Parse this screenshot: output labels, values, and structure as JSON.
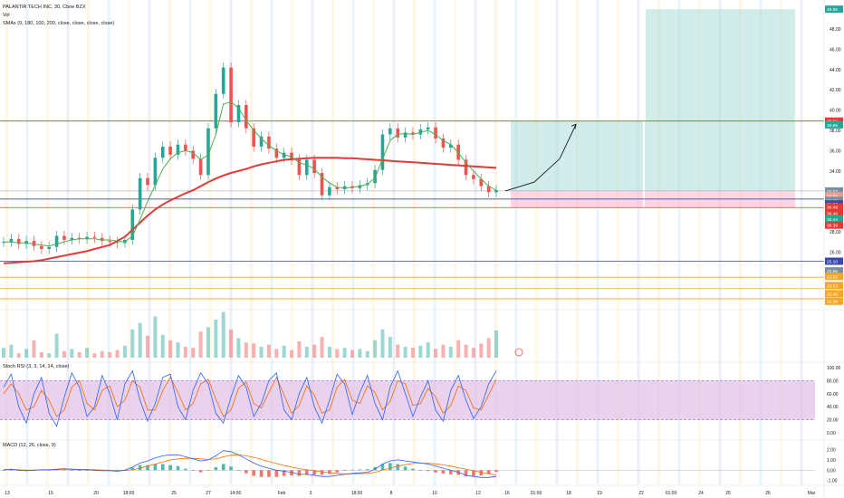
{
  "legend": {
    "title": "PALANTIR TECH INC, 30, Cboe BZX",
    "vol": "Vol",
    "smas": "SMAs (9, 180, 100, 200, close, close, close, close)",
    "stoch": "Stoch RSI (3, 3, 14, 14, close)",
    "macd": "MACD (12, 26, close, 9)"
  },
  "colors": {
    "background": "#ffffff",
    "candle_up": "#26a69a",
    "candle_down": "#ef5350",
    "sma_green": "#4caf50",
    "sma_red": "#e53935",
    "hline_red": "#e53935",
    "hline_blue": "#3949ab",
    "hline_orange": "#f5a623",
    "target_zone": "#b2dfdb",
    "stop_zone": "#f8bbd0",
    "stoch_band": "#e1bee7",
    "k_line": "#2962ff",
    "d_line": "#ef6c00",
    "macd_line": "#2962ff",
    "signal_line": "#ff6d00"
  },
  "x_axis_labels": [
    "13",
    "15",
    "20",
    "18:00",
    "25",
    "27",
    "14:00",
    "Feb",
    "3",
    "18:00",
    "8",
    "10",
    "12",
    "16",
    "01:00",
    "18",
    "19",
    "22",
    "01:00",
    "24",
    "25",
    "26",
    "Mar"
  ],
  "price_axis": {
    "ticks": [
      "48.00",
      "46.00",
      "44.00",
      "42.00",
      "40.00",
      "38.00",
      "36.00",
      "34.00",
      "28.00",
      "26.00"
    ],
    "badges": [
      {
        "label": "49.95",
        "value": 49.95,
        "color": "#26a69a"
      },
      {
        "label": "38.92",
        "value": 38.92,
        "color": "#e53935"
      },
      {
        "label": "38.95",
        "value": 38.55,
        "color": "#26a69a"
      },
      {
        "label": "32.03",
        "value": 32.03,
        "color": "#78909c"
      },
      {
        "label": "32.00",
        "value": 31.55,
        "color": "#ef9a9a"
      },
      {
        "label": "32.06",
        "value": 31.1,
        "color": "#78909c"
      },
      {
        "label": "31.23",
        "value": 30.75,
        "color": "#3949ab"
      },
      {
        "label": "30.49",
        "value": 30.45,
        "color": "#e53935"
      },
      {
        "label": "30.46",
        "value": 29.85,
        "color": "#e53935"
      },
      {
        "label": "30.44",
        "value": 29.25,
        "color": "#26a69a"
      },
      {
        "label": "30.39",
        "value": 28.65,
        "color": "#e53935"
      },
      {
        "label": "25.10",
        "value": 25.1,
        "color": "#3949ab"
      },
      {
        "label": "23.96",
        "value": 24.15,
        "color": "#78909c"
      },
      {
        "label": "23.52",
        "value": 23.6,
        "color": "#f5a623"
      },
      {
        "label": "23.53",
        "value": 22.7,
        "color": "#f5a623"
      },
      {
        "label": "23.45",
        "value": 21.9,
        "color": "#f5a623"
      },
      {
        "label": "21.36",
        "value": 21.15,
        "color": "#f5a623"
      }
    ]
  },
  "stoch_axis": {
    "ticks": [
      "100.00",
      "80.00",
      "60.00",
      "40.00",
      "20.00",
      "0.00"
    ]
  },
  "macd_axis": {
    "ticks": [
      "2.00",
      "1.00",
      "0.00",
      "-1.00"
    ]
  },
  "chart_data": {
    "type": "candlestick",
    "title": "PALANTIR TECH INC, 30, Cboe BZX",
    "price_range": [
      20.5,
      50.5
    ],
    "key_levels": [
      {
        "value": 38.92,
        "color": "#e53935"
      },
      {
        "value": 31.23,
        "color": "#3949ab"
      },
      {
        "value": 30.39,
        "color": "#e53935"
      },
      {
        "value": 25.1,
        "color": "#3949ab"
      },
      {
        "value": 23.52,
        "color": "#f5a623"
      },
      {
        "value": 22.4,
        "color": "#f5a623"
      },
      {
        "value": 21.4,
        "color": "#f5a623"
      }
    ],
    "position": {
      "entry": 32.03,
      "target": 38.92,
      "stop": 30.39,
      "extended_target": 49.95
    },
    "price_path": [
      27.0,
      27.3,
      26.8,
      27.1,
      26.6,
      26.3,
      26.5,
      27.6,
      27.2,
      27.4,
      27.3,
      27.5,
      27.4,
      27.1,
      27.0,
      26.9,
      27.2,
      30.2,
      33.3,
      32.6,
      35.3,
      36.4,
      35.6,
      36.6,
      36.0,
      35.2,
      33.6,
      38.2,
      41.6,
      44.2,
      38.8,
      40.5,
      38.2,
      36.4,
      37.4,
      36.2,
      35.3,
      35.8,
      35.1,
      33.6,
      35.1,
      33.8,
      31.6,
      32.4,
      32.2,
      32.5,
      32.3,
      32.6,
      32.8,
      34.1,
      37.6,
      38.2,
      37.3,
      37.8,
      37.6,
      38.1,
      38.3,
      37.2,
      36.3,
      36.6,
      35.1,
      33.6,
      33.2,
      32.5,
      31.9,
      32.1
    ],
    "sma_green": [
      27.0,
      27.0,
      26.9,
      26.9,
      26.8,
      26.7,
      26.6,
      26.8,
      27.0,
      27.2,
      27.3,
      27.3,
      27.3,
      27.2,
      27.2,
      27.1,
      27.0,
      27.6,
      29.2,
      31.0,
      32.6,
      34.2,
      35.2,
      35.8,
      36.0,
      35.8,
      35.1,
      35.6,
      37.6,
      40.6,
      40.8,
      40.2,
      39.0,
      38.0,
      37.2,
      36.5,
      36.0,
      35.6,
      35.4,
      34.8,
      34.6,
      34.2,
      33.4,
      32.8,
      32.4,
      32.3,
      32.4,
      32.5,
      32.7,
      33.3,
      35.2,
      37.0,
      37.6,
      37.7,
      37.6,
      37.8,
      38.0,
      37.6,
      37.0,
      36.6,
      35.8,
      34.8,
      34.0,
      33.2,
      32.5,
      32.1
    ],
    "sma_red": [
      24.9,
      24.95,
      25.0,
      25.05,
      25.1,
      25.2,
      25.35,
      25.5,
      25.65,
      25.8,
      25.95,
      26.1,
      26.3,
      26.5,
      26.7,
      27.1,
      27.5,
      28.2,
      28.9,
      29.6,
      30.2,
      30.7,
      31.1,
      31.45,
      31.8,
      32.1,
      32.5,
      32.9,
      33.25,
      33.55,
      33.8,
      34.0,
      34.2,
      34.45,
      34.65,
      34.8,
      34.95,
      35.1,
      35.15,
      35.2,
      35.25,
      35.3,
      35.3,
      35.3,
      35.3,
      35.25,
      35.25,
      35.2,
      35.15,
      35.1,
      35.05,
      35.0,
      34.95,
      34.9,
      34.85,
      34.8,
      34.75,
      34.7,
      34.65,
      34.6,
      34.55,
      34.5,
      34.45,
      34.4,
      34.35,
      34.3
    ],
    "projection_path": [
      [
        32.03
      ],
      [
        32.9
      ],
      [
        35.2
      ],
      [
        38.6
      ]
    ],
    "volume": [
      0.9,
      1.2,
      0.4,
      0.8,
      1.6,
      0.5,
      0.4,
      2.2,
      0.6,
      0.8,
      0.5,
      0.9,
      0.4,
      0.6,
      0.5,
      0.7,
      1.1,
      2.6,
      3.2,
      2.0,
      3.8,
      2.1,
      1.6,
      1.4,
      1.0,
      0.9,
      2.4,
      2.8,
      3.5,
      4.2,
      2.6,
      1.8,
      1.4,
      1.3,
      1.0,
      1.2,
      0.8,
      1.1,
      0.7,
      1.5,
      1.0,
      1.2,
      1.9,
      1.0,
      0.8,
      0.9,
      0.7,
      0.8,
      0.6,
      1.6,
      2.6,
      1.9,
      1.2,
      1.0,
      0.9,
      1.1,
      1.4,
      0.8,
      1.2,
      1.0,
      1.6,
      1.2,
      0.9,
      1.3,
      1.8,
      2.5
    ],
    "stoch_k": [
      70,
      90,
      40,
      15,
      60,
      85,
      30,
      10,
      55,
      92,
      70,
      25,
      40,
      88,
      60,
      20,
      75,
      95,
      50,
      18,
      45,
      85,
      90,
      40,
      20,
      65,
      92,
      75,
      30,
      15,
      55,
      88,
      70,
      25,
      45,
      80,
      92,
      35,
      20,
      60,
      85,
      40,
      15,
      50,
      90,
      75,
      28,
      62,
      88,
      45,
      20,
      70,
      95,
      60,
      25,
      55,
      80,
      35,
      18,
      65,
      88,
      50,
      22,
      40,
      75,
      95
    ],
    "stoch_d": [
      60,
      75,
      60,
      35,
      40,
      65,
      50,
      25,
      35,
      70,
      80,
      45,
      35,
      65,
      72,
      40,
      50,
      80,
      70,
      35,
      35,
      65,
      85,
      62,
      35,
      45,
      75,
      82,
      52,
      25,
      35,
      68,
      78,
      45,
      38,
      62,
      85,
      58,
      30,
      42,
      72,
      58,
      30,
      35,
      70,
      82,
      50,
      45,
      72,
      62,
      35,
      48,
      80,
      75,
      42,
      45,
      68,
      55,
      30,
      42,
      72,
      65,
      38,
      35,
      58,
      82
    ],
    "macd": [
      0.05,
      0.1,
      0.0,
      -0.05,
      0.0,
      0.05,
      0.05,
      0.1,
      0.15,
      0.1,
      0.05,
      0.05,
      0.0,
      -0.05,
      -0.05,
      -0.1,
      0.0,
      0.3,
      0.7,
      0.9,
      1.2,
      1.4,
      1.5,
      1.5,
      1.3,
      1.1,
      0.9,
      1.0,
      1.4,
      1.9,
      1.8,
      1.5,
      1.1,
      0.7,
      0.4,
      0.2,
      0.0,
      -0.1,
      -0.2,
      -0.4,
      -0.4,
      -0.5,
      -0.6,
      -0.6,
      -0.5,
      -0.4,
      -0.3,
      -0.25,
      -0.2,
      0.1,
      0.6,
      0.9,
      1.0,
      0.9,
      0.8,
      0.7,
      0.6,
      0.4,
      0.2,
      0.0,
      -0.2,
      -0.5,
      -0.6,
      -0.7,
      -0.7,
      -0.6
    ],
    "signal": [
      0.05,
      0.07,
      0.05,
      0.02,
      0.01,
      0.02,
      0.03,
      0.06,
      0.09,
      0.1,
      0.08,
      0.07,
      0.05,
      0.02,
      0.0,
      -0.03,
      -0.02,
      0.05,
      0.2,
      0.4,
      0.6,
      0.8,
      1.0,
      1.1,
      1.15,
      1.15,
      1.1,
      1.05,
      1.1,
      1.3,
      1.45,
      1.5,
      1.4,
      1.25,
      1.05,
      0.85,
      0.65,
      0.45,
      0.3,
      0.15,
      0.05,
      -0.05,
      -0.15,
      -0.25,
      -0.3,
      -0.35,
      -0.35,
      -0.33,
      -0.3,
      -0.2,
      0.0,
      0.2,
      0.4,
      0.55,
      0.65,
      0.7,
      0.68,
      0.62,
      0.52,
      0.4,
      0.25,
      0.1,
      -0.05,
      -0.2,
      -0.35,
      -0.45
    ]
  }
}
